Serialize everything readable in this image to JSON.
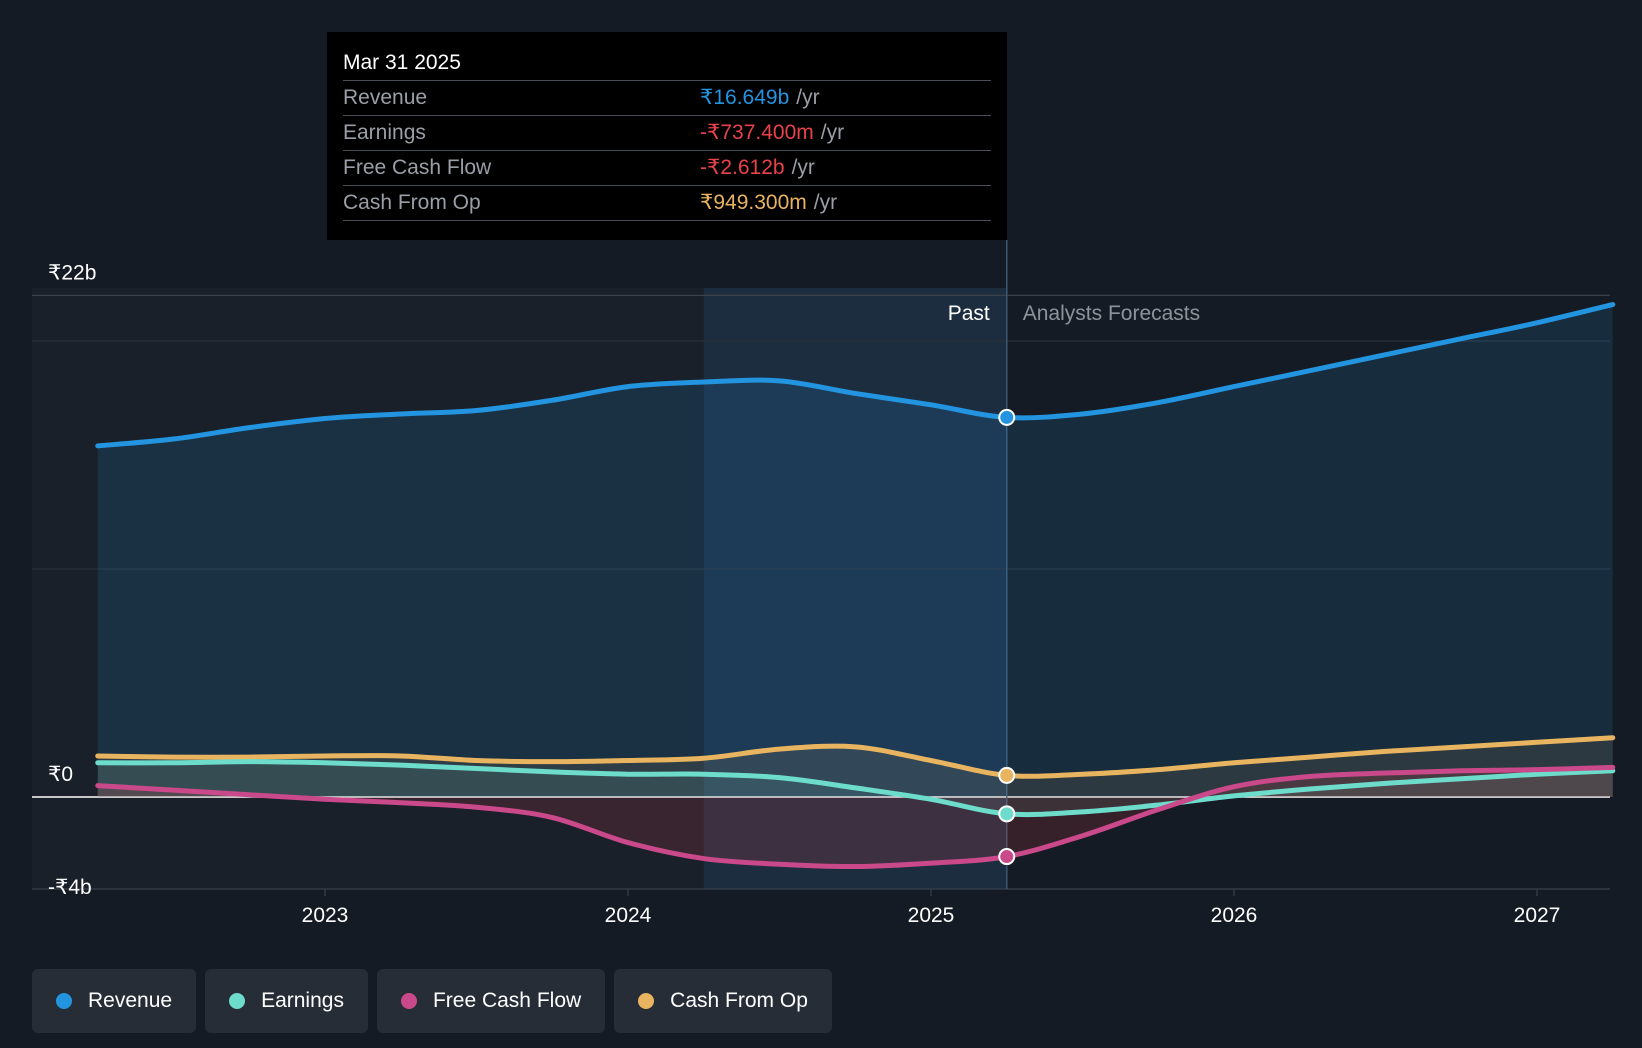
{
  "colors": {
    "background": "#151b24",
    "revenue": "#2394df",
    "earnings": "#6ddcca",
    "free_cash_flow": "#c9498a",
    "cash_from_op": "#e9b460",
    "negative": "#e9424a"
  },
  "tooltip": {
    "date": "Mar 31 2025",
    "rows": [
      {
        "label": "Revenue",
        "value": "₹16.649b",
        "unit": "/yr"
      },
      {
        "label": "Earnings",
        "value": "-₹737.400m",
        "unit": "/yr"
      },
      {
        "label": "Free Cash Flow",
        "value": "-₹2.612b",
        "unit": "/yr"
      },
      {
        "label": "Cash From Op",
        "value": "₹949.300m",
        "unit": "/yr"
      }
    ]
  },
  "legend": {
    "items": [
      {
        "label": "Revenue",
        "icon": "revenue-dot-icon"
      },
      {
        "label": "Earnings",
        "icon": "earnings-dot-icon"
      },
      {
        "label": "Free Cash Flow",
        "icon": "free-cash-flow-dot-icon"
      },
      {
        "label": "Cash From Op",
        "icon": "cash-from-op-dot-icon"
      }
    ]
  },
  "chart_data": {
    "type": "area",
    "title": "",
    "past_label": "Past",
    "forecast_label": "Analysts Forecasts",
    "highlight_date": 2025.25,
    "y_tick_labels": [
      {
        "value": 22,
        "label": "₹22b"
      },
      {
        "value": 0,
        "label": "₹0"
      },
      {
        "value": -4,
        "label": "-₹4b"
      }
    ],
    "ylim": [
      -4,
      22
    ],
    "xlim": [
      2022.05,
      2027.25
    ],
    "x_ticks": [
      2023,
      2024,
      2025,
      2026,
      2027
    ],
    "shaded_past_range": [
      2024.25,
      2025.25
    ],
    "series": [
      {
        "name": "Revenue",
        "key": "revenue",
        "points": [
          [
            2022.25,
            15.4
          ],
          [
            2022.5,
            15.7
          ],
          [
            2022.75,
            16.2
          ],
          [
            2023.0,
            16.6
          ],
          [
            2023.25,
            16.8
          ],
          [
            2023.5,
            16.95
          ],
          [
            2023.75,
            17.4
          ],
          [
            2024.0,
            18.0
          ],
          [
            2024.25,
            18.2
          ],
          [
            2024.5,
            18.25
          ],
          [
            2024.75,
            17.7
          ],
          [
            2025.0,
            17.2
          ],
          [
            2025.25,
            16.649
          ],
          [
            2025.5,
            16.8
          ],
          [
            2025.75,
            17.3
          ],
          [
            2026.0,
            18.0
          ],
          [
            2026.25,
            18.7
          ],
          [
            2026.5,
            19.4
          ],
          [
            2026.75,
            20.1
          ],
          [
            2027.0,
            20.8
          ],
          [
            2027.25,
            21.6
          ]
        ]
      },
      {
        "name": "Earnings",
        "key": "earnings",
        "points": [
          [
            2022.25,
            1.5
          ],
          [
            2022.5,
            1.5
          ],
          [
            2022.75,
            1.55
          ],
          [
            2023.0,
            1.5
          ],
          [
            2023.25,
            1.4
          ],
          [
            2023.5,
            1.25
          ],
          [
            2023.75,
            1.1
          ],
          [
            2024.0,
            1.0
          ],
          [
            2024.25,
            1.0
          ],
          [
            2024.5,
            0.85
          ],
          [
            2024.75,
            0.4
          ],
          [
            2025.0,
            -0.1
          ],
          [
            2025.25,
            -0.7374
          ],
          [
            2025.5,
            -0.65
          ],
          [
            2025.75,
            -0.35
          ],
          [
            2026.0,
            0.05
          ],
          [
            2026.25,
            0.35
          ],
          [
            2026.5,
            0.6
          ],
          [
            2026.75,
            0.8
          ],
          [
            2027.0,
            1.0
          ],
          [
            2027.25,
            1.15
          ]
        ]
      },
      {
        "name": "Free Cash Flow",
        "key": "free_cash_flow",
        "points": [
          [
            2022.25,
            0.5
          ],
          [
            2022.5,
            0.3
          ],
          [
            2022.75,
            0.1
          ],
          [
            2023.0,
            -0.1
          ],
          [
            2023.25,
            -0.25
          ],
          [
            2023.5,
            -0.45
          ],
          [
            2023.75,
            -0.9
          ],
          [
            2024.0,
            -2.0
          ],
          [
            2024.25,
            -2.7
          ],
          [
            2024.5,
            -2.95
          ],
          [
            2024.75,
            -3.05
          ],
          [
            2025.0,
            -2.9
          ],
          [
            2025.25,
            -2.612
          ],
          [
            2025.5,
            -1.7
          ],
          [
            2025.75,
            -0.55
          ],
          [
            2026.0,
            0.45
          ],
          [
            2026.25,
            0.9
          ],
          [
            2026.5,
            1.05
          ],
          [
            2026.75,
            1.15
          ],
          [
            2027.0,
            1.2
          ],
          [
            2027.25,
            1.3
          ]
        ]
      },
      {
        "name": "Cash From Op",
        "key": "cash_from_op",
        "points": [
          [
            2022.25,
            1.8
          ],
          [
            2022.5,
            1.75
          ],
          [
            2022.75,
            1.75
          ],
          [
            2023.0,
            1.8
          ],
          [
            2023.25,
            1.8
          ],
          [
            2023.5,
            1.6
          ],
          [
            2023.75,
            1.55
          ],
          [
            2024.0,
            1.6
          ],
          [
            2024.25,
            1.7
          ],
          [
            2024.5,
            2.1
          ],
          [
            2024.75,
            2.2
          ],
          [
            2025.0,
            1.6
          ],
          [
            2025.25,
            0.9493
          ],
          [
            2025.5,
            1.0
          ],
          [
            2025.75,
            1.2
          ],
          [
            2026.0,
            1.5
          ],
          [
            2026.25,
            1.75
          ],
          [
            2026.5,
            2.0
          ],
          [
            2026.75,
            2.2
          ],
          [
            2027.0,
            2.4
          ],
          [
            2027.25,
            2.6
          ]
        ]
      }
    ]
  }
}
